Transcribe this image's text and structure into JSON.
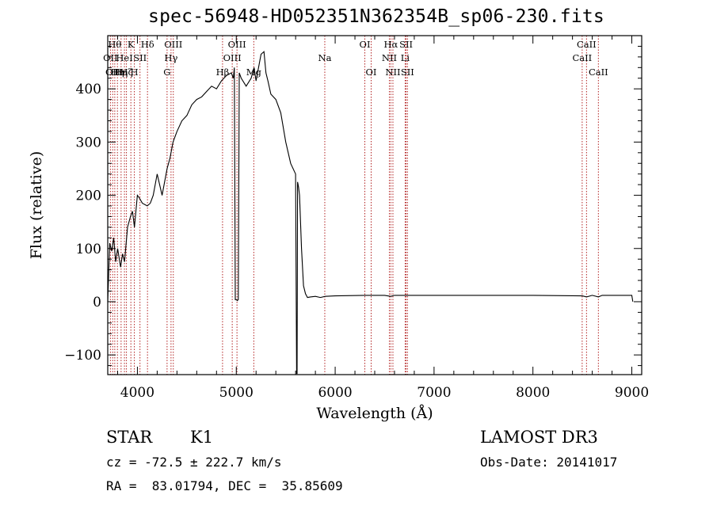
{
  "title": "spec-56948-HD052351N362354B_sp06-230.fits",
  "info": {
    "object_class": "STAR",
    "subclass": "K1",
    "cz": "cz = -72.5 ± 222.7 km/s",
    "coords": "RA =  83.01794, DEC =  35.85609",
    "survey": "LAMOST DR3",
    "obs_date": "Obs-Date: 20141017"
  },
  "chart_data": {
    "type": "line",
    "title": "spec-56948-HD052351N362354B_sp06-230.fits",
    "xlabel": "Wavelength (Å)",
    "ylabel": "Flux (relative)",
    "xlim": [
      3700,
      9100
    ],
    "ylim": [
      -137,
      500
    ],
    "xticks": [
      4000,
      5000,
      6000,
      7000,
      8000,
      9000
    ],
    "yticks": [
      -100,
      0,
      100,
      200,
      300,
      400
    ],
    "series": [
      {
        "x": [
          3700,
          3720,
          3740,
          3760,
          3780,
          3800,
          3830,
          3850,
          3870,
          3900,
          3930,
          3950,
          3970,
          4000,
          4020,
          4050,
          4100,
          4130,
          4160,
          4200,
          4250,
          4300,
          4330,
          4360,
          4400,
          4450,
          4500,
          4550,
          4600,
          4650,
          4700,
          4750,
          4800,
          4850,
          4900,
          4950,
          4970,
          4980,
          4990,
          5000,
          5010,
          5020,
          5030,
          5050,
          5100,
          5150,
          5180,
          5200,
          5250,
          5280,
          5300,
          5320,
          5350,
          5400,
          5450,
          5500,
          5550,
          5600,
          5610,
          5615,
          5620,
          5625,
          5630,
          5640,
          5660,
          5680,
          5700,
          5720,
          5750,
          5800,
          5850,
          5900,
          6000,
          6300,
          6500,
          6562,
          6600,
          7000,
          7500,
          8000,
          8500,
          8542,
          8600,
          8662,
          8700,
          9000,
          9010
        ],
        "y": [
          0,
          110,
          95,
          120,
          75,
          100,
          65,
          90,
          75,
          140,
          160,
          170,
          140,
          200,
          195,
          185,
          180,
          185,
          200,
          240,
          200,
          250,
          270,
          300,
          320,
          340,
          350,
          370,
          380,
          385,
          395,
          405,
          400,
          415,
          425,
          430,
          420,
          440,
          4,
          4,
          2,
          4,
          430,
          420,
          405,
          420,
          440,
          415,
          465,
          470,
          430,
          415,
          390,
          380,
          355,
          300,
          260,
          240,
          -135,
          -135,
          225,
          220,
          215,
          200,
          100,
          30,
          15,
          8,
          9,
          10,
          8,
          10,
          11,
          12,
          12,
          10,
          12,
          12,
          12,
          12,
          11,
          9,
          12,
          9,
          12,
          12,
          0
        ]
      }
    ],
    "lines": [
      {
        "wave": 3727,
        "label": "OII",
        "row": 2
      },
      {
        "wave": 3750,
        "label": "OII",
        "row": 3
      },
      {
        "wave": 3771,
        "label": "Hθ",
        "row": 1
      },
      {
        "wave": 3798,
        "label": "Hη",
        "row": 3
      },
      {
        "wave": 3835,
        "label": "Hη",
        "row": 3
      },
      {
        "wave": 3869,
        "label": "HeI",
        "row": 2
      },
      {
        "wave": 3889,
        "label": "Hζ",
        "row": 3
      },
      {
        "wave": 3934,
        "label": "K",
        "row": 1
      },
      {
        "wave": 3969,
        "label": "H",
        "row": 3
      },
      {
        "wave": 4026,
        "label": "SII",
        "row": 2
      },
      {
        "wave": 4102,
        "label": "Hδ",
        "row": 1
      },
      {
        "wave": 4300,
        "label": "G",
        "row": 3
      },
      {
        "wave": 4340,
        "label": "Hγ",
        "row": 2
      },
      {
        "wave": 4363,
        "label": "OIII",
        "row": 1
      },
      {
        "wave": 4861,
        "label": "Hβ",
        "row": 3
      },
      {
        "wave": 4959,
        "label": "OIII",
        "row": 2
      },
      {
        "wave": 5007,
        "label": "OIII",
        "row": 1
      },
      {
        "wave": 5177,
        "label": "Mg",
        "row": 3
      },
      {
        "wave": 5895,
        "label": "Na",
        "row": 2
      },
      {
        "wave": 6300,
        "label": "OI",
        "row": 1
      },
      {
        "wave": 6364,
        "label": "OI",
        "row": 3
      },
      {
        "wave": 6548,
        "label": "NII",
        "row": 2
      },
      {
        "wave": 6563,
        "label": "Hα",
        "row": 1
      },
      {
        "wave": 6584,
        "label": "NII",
        "row": 3
      },
      {
        "wave": 6708,
        "label": "Li",
        "row": 2
      },
      {
        "wave": 6717,
        "label": "SII",
        "row": 1
      },
      {
        "wave": 6731,
        "label": "SII",
        "row": 3
      },
      {
        "wave": 8498,
        "label": "CaII",
        "row": 2
      },
      {
        "wave": 8542,
        "label": "CaII",
        "row": 1
      },
      {
        "wave": 8662,
        "label": "CaII",
        "row": 3
      }
    ]
  },
  "colors": {
    "line_markers": "#b22222",
    "spectrum": "#000000",
    "background": "#ffffff"
  }
}
